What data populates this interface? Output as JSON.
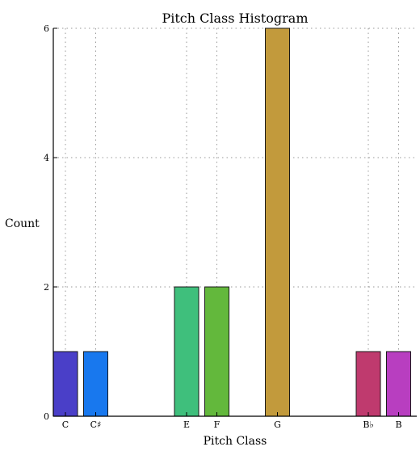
{
  "chart_data": {
    "type": "bar",
    "title": "Pitch Class Histogram",
    "xlabel": "Pitch Class",
    "ylabel": "Count",
    "ylim": [
      0,
      6
    ],
    "yticks": [
      0,
      2,
      4,
      6
    ],
    "grid": true,
    "x_slots": 12,
    "categories": [
      "C",
      "C♯",
      "E",
      "F",
      "G",
      "B♭",
      "B"
    ],
    "slot_index": [
      0,
      1,
      4,
      5,
      7,
      10,
      11
    ],
    "values": [
      1,
      1,
      2,
      2,
      6,
      1,
      1
    ],
    "colors": [
      "#4a3fc8",
      "#1878ee",
      "#3fbf7c",
      "#63b83c",
      "#c29a3c",
      "#bf3a6e",
      "#b83ec0"
    ]
  }
}
